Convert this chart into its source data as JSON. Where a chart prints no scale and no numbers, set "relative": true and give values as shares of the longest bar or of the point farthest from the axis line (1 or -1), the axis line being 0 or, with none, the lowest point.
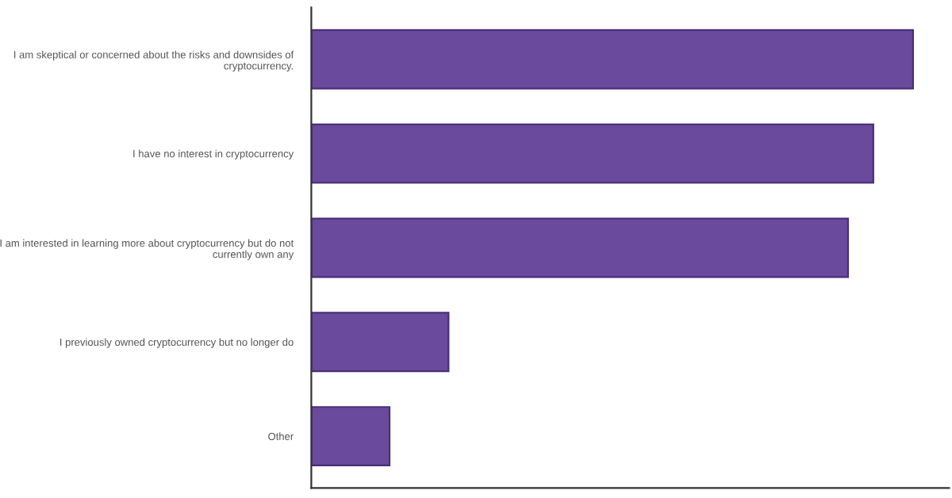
{
  "chart_data": {
    "type": "bar",
    "orientation": "horizontal",
    "relative": true,
    "categories": [
      "I am skeptical or concerned about the risks and downsides of\ncryptocurrency.",
      "I have no interest in cryptocurrency",
      "I am interested in learning more about cryptocurrency but do not\ncurrently own any",
      "I previously owned cryptocurrency but no longer do",
      "Other"
    ],
    "values": [
      1,
      0.934,
      0.892,
      0.228,
      0.13
    ],
    "color": "#6a4a9c"
  }
}
